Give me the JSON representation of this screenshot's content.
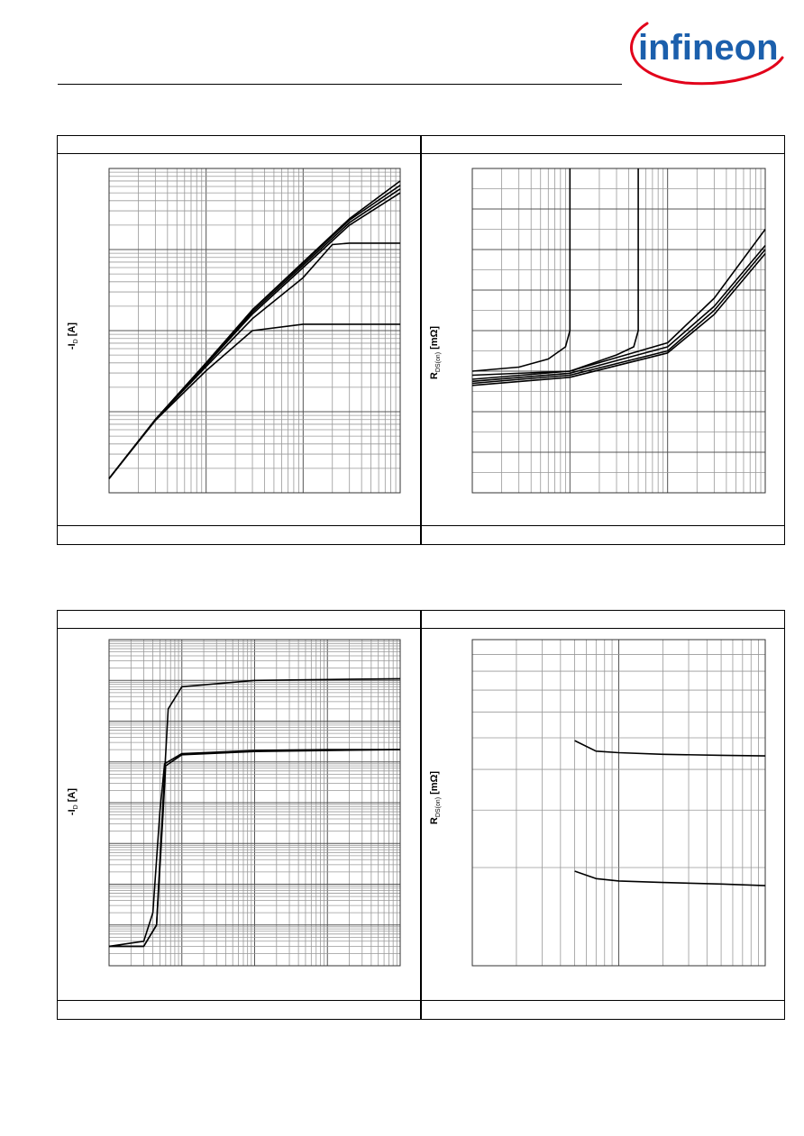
{
  "brand": {
    "logo_text": "infineon",
    "logo_color": "#1b5fac",
    "swoosh_color": "#e2001a"
  },
  "chart_data": [
    {
      "type": "line",
      "title": "",
      "xlabel": "",
      "ylabel": "-I_D [A]",
      "ylabel_text": "-I",
      "ylabel_sub": "D",
      "ylabel_unit": " [A]",
      "xscale": "log",
      "yscale": "log",
      "xlim": [
        0.1,
        100
      ],
      "ylim": [
        0.1,
        1000
      ],
      "grid": true,
      "series": [
        {
          "x": [
            0.1,
            0.3,
            1,
            3,
            10,
            30,
            100
          ],
          "y": [
            0.15,
            0.8,
            4,
            18,
            70,
            240,
            700
          ]
        },
        {
          "x": [
            0.1,
            0.3,
            1,
            3,
            10,
            30,
            100
          ],
          "y": [
            0.15,
            0.8,
            4,
            18,
            68,
            230,
            620
          ]
        },
        {
          "x": [
            0.1,
            0.3,
            1,
            3,
            10,
            30,
            100
          ],
          "y": [
            0.15,
            0.8,
            3.9,
            17,
            64,
            215,
            560
          ]
        },
        {
          "x": [
            0.1,
            0.3,
            1,
            3,
            10,
            30,
            100
          ],
          "y": [
            0.15,
            0.8,
            3.8,
            16,
            60,
            200,
            500
          ]
        },
        {
          "x": [
            0.1,
            0.3,
            1,
            3,
            10,
            20,
            30,
            100
          ],
          "y": [
            0.15,
            0.8,
            3.6,
            14,
            45,
            115,
            120,
            120
          ]
        },
        {
          "x": [
            0.1,
            0.3,
            1,
            3,
            10,
            100
          ],
          "y": [
            0.15,
            0.78,
            3.2,
            10,
            12,
            12
          ]
        }
      ]
    },
    {
      "type": "line",
      "title": "",
      "xlabel": "",
      "ylabel": "R_DS(on) [mΩ]",
      "ylabel_text": "R",
      "ylabel_sub": "DS(on)",
      "ylabel_unit": " [mΩ]",
      "xscale": "log",
      "yscale": "linear",
      "xlim": [
        1,
        1000
      ],
      "ylim": [
        0,
        8
      ],
      "grid": true,
      "series": [
        {
          "x": [
            1,
            3,
            6,
            9,
            10,
            10
          ],
          "y": [
            3.0,
            3.1,
            3.3,
            3.6,
            4.0,
            8.0
          ]
        },
        {
          "x": [
            1,
            10,
            30,
            45,
            50,
            50
          ],
          "y": [
            2.9,
            3.0,
            3.4,
            3.6,
            4.0,
            8.0
          ]
        },
        {
          "x": [
            1,
            10,
            100,
            300,
            1000
          ],
          "y": [
            2.8,
            3.0,
            3.7,
            4.8,
            6.5
          ]
        },
        {
          "x": [
            1,
            10,
            100,
            300,
            1000
          ],
          "y": [
            2.75,
            2.95,
            3.6,
            4.6,
            6.1
          ]
        },
        {
          "x": [
            1,
            10,
            100,
            300,
            1000
          ],
          "y": [
            2.7,
            2.9,
            3.5,
            4.5,
            6.0
          ]
        },
        {
          "x": [
            1,
            10,
            100,
            300,
            1000
          ],
          "y": [
            2.65,
            2.85,
            3.45,
            4.4,
            5.9
          ]
        }
      ]
    },
    {
      "type": "line",
      "title": "",
      "xlabel": "",
      "ylabel": "-I_D [A]",
      "ylabel_text": "-I",
      "ylabel_sub": "D",
      "ylabel_unit": " [A]",
      "xscale": "log",
      "yscale": "log",
      "xlim": [
        0.1,
        1000
      ],
      "ylim": [
        0.0001,
        10000
      ],
      "grid": true,
      "series": [
        {
          "x": [
            0.1,
            0.3,
            0.45,
            0.55,
            0.65,
            1,
            10,
            100,
            1000
          ],
          "y": [
            0.0003,
            0.0003,
            0.001,
            1,
            200,
            700,
            1000,
            1050,
            1100
          ]
        },
        {
          "x": [
            0.1,
            0.3,
            0.45,
            0.55,
            0.6,
            1,
            10,
            100,
            1000
          ],
          "y": [
            0.0003,
            0.0003,
            0.001,
            0.5,
            8,
            15,
            18,
            19,
            20
          ]
        },
        {
          "x": [
            0.1,
            0.3,
            0.4,
            0.5,
            0.58,
            1,
            10,
            100,
            1000
          ],
          "y": [
            0.0003,
            0.0004,
            0.002,
            0.6,
            9,
            16,
            19,
            20,
            20
          ]
        }
      ]
    },
    {
      "type": "line",
      "title": "",
      "xlabel": "",
      "ylabel": "R_DS(on) [mΩ]",
      "ylabel_text": "R",
      "ylabel_sub": "DS(on)",
      "ylabel_unit": " [mΩ]",
      "xscale": "log",
      "yscale": "log",
      "xlim": [
        1,
        100
      ],
      "ylim": [
        1,
        10
      ],
      "grid": true,
      "series": [
        {
          "x": [
            5,
            7,
            10,
            20,
            50,
            100
          ],
          "y": [
            4.9,
            4.55,
            4.5,
            4.45,
            4.42,
            4.4
          ]
        },
        {
          "x": [
            5,
            7,
            10,
            20,
            50,
            100
          ],
          "y": [
            1.95,
            1.85,
            1.82,
            1.8,
            1.78,
            1.76
          ]
        }
      ]
    }
  ]
}
